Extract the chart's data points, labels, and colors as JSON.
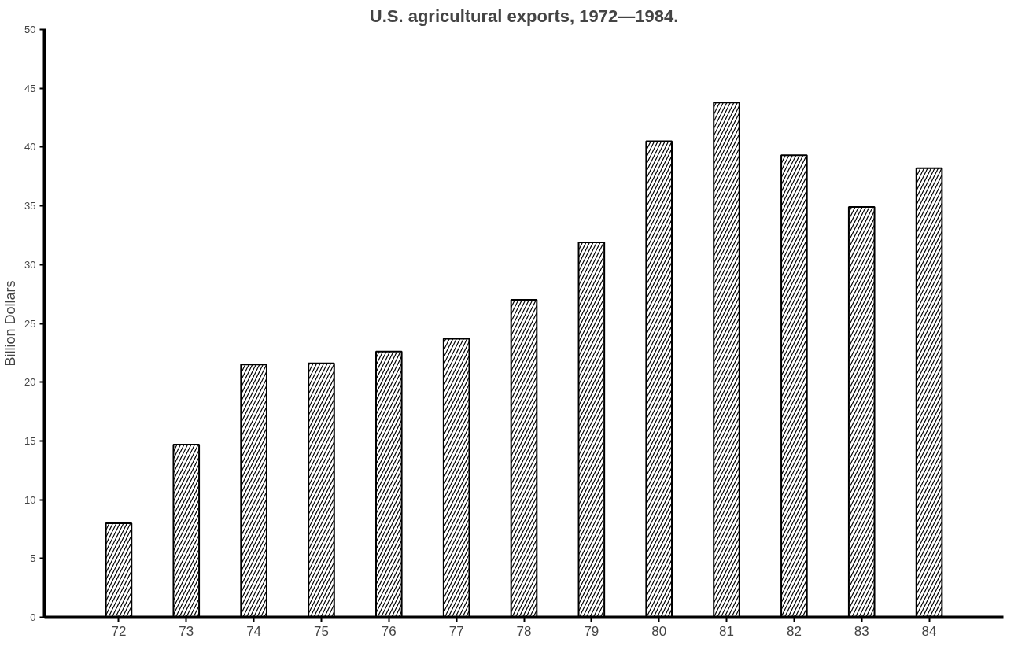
{
  "chart_data": {
    "type": "bar",
    "title": "U.S. agricultural exports, 1972—1984.",
    "ylabel": "Billion Dollars",
    "categories": [
      "72",
      "73",
      "74",
      "75",
      "76",
      "77",
      "78",
      "79",
      "80",
      "81",
      "82",
      "83",
      "84"
    ],
    "values": [
      8.0,
      14.7,
      21.5,
      21.6,
      22.6,
      23.7,
      27.0,
      31.9,
      40.5,
      43.8,
      39.3,
      34.9,
      38.2
    ],
    "color": "#000000",
    "ylim": [
      0,
      50
    ],
    "yticks": [
      0,
      5,
      10,
      15,
      20,
      25,
      30,
      35,
      40,
      45,
      50
    ],
    "grid": false
  }
}
